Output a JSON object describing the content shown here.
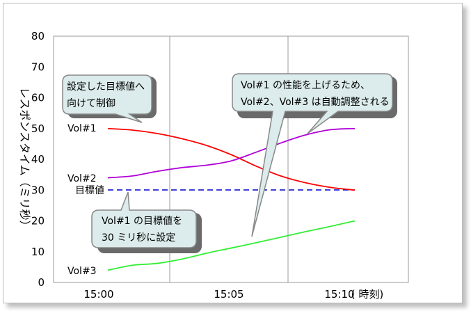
{
  "chart_data": {
    "type": "line",
    "ylabel": "レスポンスタイム（ミリ秒）",
    "x_unit_label": "( 時刻)",
    "x_ticks": [
      "15:00",
      "15:05",
      "15:10"
    ],
    "ylim": [
      0,
      80
    ],
    "y_ticks": [
      0,
      10,
      20,
      30,
      40,
      50,
      60,
      70,
      80
    ],
    "grid": "vertical",
    "target": {
      "label": "目標値",
      "value": 30,
      "style": "dashed"
    },
    "series": [
      {
        "name": "Vol#1",
        "color": "#ff0000",
        "x": [
          0.0,
          1.0,
          2.0,
          3.0,
          4.0,
          5.0,
          6.0,
          7.0,
          8.0,
          9.0,
          10.0
        ],
        "values": [
          50,
          49.5,
          48.4,
          46.7,
          44.5,
          41.5,
          37.8,
          34.6,
          32.4,
          30.9,
          30
        ]
      },
      {
        "name": "Vol#2",
        "color": "#b000d8",
        "x": [
          0.0,
          1.0,
          2.0,
          3.0,
          4.0,
          5.0,
          6.0,
          7.0,
          8.0,
          9.0,
          10.0
        ],
        "values": [
          34,
          34.6,
          36.1,
          37.3,
          38.1,
          39.5,
          42.3,
          45.3,
          47.9,
          49.6,
          50
        ]
      },
      {
        "name": "Vol#3",
        "color": "#33ee33",
        "x": [
          0.0,
          1.0,
          2.0,
          3.0,
          4.0,
          5.0,
          6.0,
          7.0,
          8.0,
          9.0,
          10.0
        ],
        "values": [
          4,
          5.6,
          6.2,
          7.6,
          9.5,
          11.2,
          12.9,
          14.7,
          16.5,
          18.2,
          20
        ]
      }
    ]
  },
  "callouts": {
    "top_left": {
      "line1": "設定した目標値へ",
      "line2": "向けて制御"
    },
    "top_right": {
      "line1": "Vol#1 の性能を上げるため、",
      "line2": "Vol#2、Vol#3 は自動調整される"
    },
    "bottom": {
      "line1": "Vol#1 の目標値を",
      "line2": "30 ミリ秒に設定"
    }
  }
}
